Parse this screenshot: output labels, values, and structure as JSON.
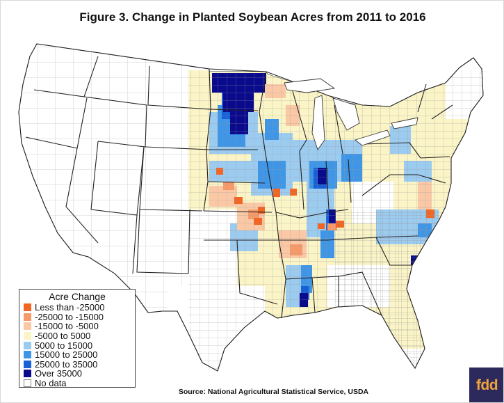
{
  "title": "Figure 3. Change in Planted Soybean Acres from 2011 to 2016",
  "source": "Source:  National Agricultural Statistical Service, USDA",
  "logo_text": "fdd",
  "legend": {
    "title": "Acre Change",
    "items": [
      {
        "label": "Less than -25000",
        "color": "#f26522"
      },
      {
        "label": "-25000 to -15000",
        "color": "#f79a6a"
      },
      {
        "label": "-15000 to -5000",
        "color": "#fbc8a6"
      },
      {
        "label": "-5000 to 5000",
        "color": "#fbf4c6"
      },
      {
        "label": "5000 to 15000",
        "color": "#9ccbf0"
      },
      {
        "label": "15000 to 25000",
        "color": "#3f95e6"
      },
      {
        "label": "25000 to 35000",
        "color": "#1660d8"
      },
      {
        "label": "Over 35000",
        "color": "#0a0a8c"
      },
      {
        "label": "No data",
        "color": "#ffffff"
      }
    ]
  }
}
